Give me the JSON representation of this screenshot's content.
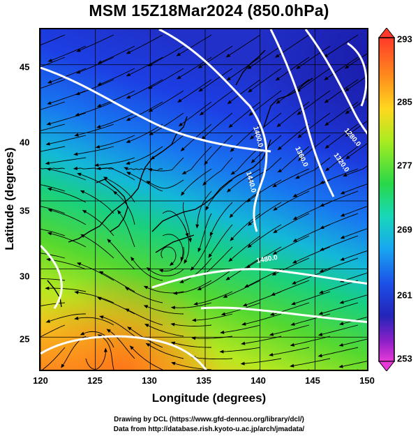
{
  "title": "MSM 15Z18Mar2024 (850.0hPa)",
  "xlabel": "Longitude (degrees)",
  "ylabel": "Latitude  (degrees)",
  "footer": {
    "line1": "Drawing by DCL (https://www.gfd-dennou.org/library/dcl/)",
    "line2": "Data from http://database.rish.kyoto-u.ac.jp/arch/jmadata/"
  },
  "map": {
    "lon_range": [
      120,
      150
    ],
    "lat_range": [
      22.4,
      47.6
    ],
    "x_ticks": [
      "120",
      "125",
      "130",
      "135",
      "140",
      "145",
      "150"
    ],
    "y_ticks": [
      "25",
      "30",
      "35",
      "40",
      "45"
    ],
    "colorbar": {
      "range": [
        253,
        293
      ],
      "labels": [
        "293",
        "285",
        "277",
        "269",
        "261",
        "253"
      ]
    },
    "contour_labels": [
      "1400.0",
      "1360.0",
      "1320.0",
      "1280.0",
      "1440.0",
      "1480.0"
    ],
    "colors": {
      "warm": "#ff7a1f",
      "mid": "#7fe020",
      "cool": "#1ab0ff",
      "cold": "#1a2ee0",
      "contour": "#ffffff",
      "coast": "#000000"
    }
  }
}
